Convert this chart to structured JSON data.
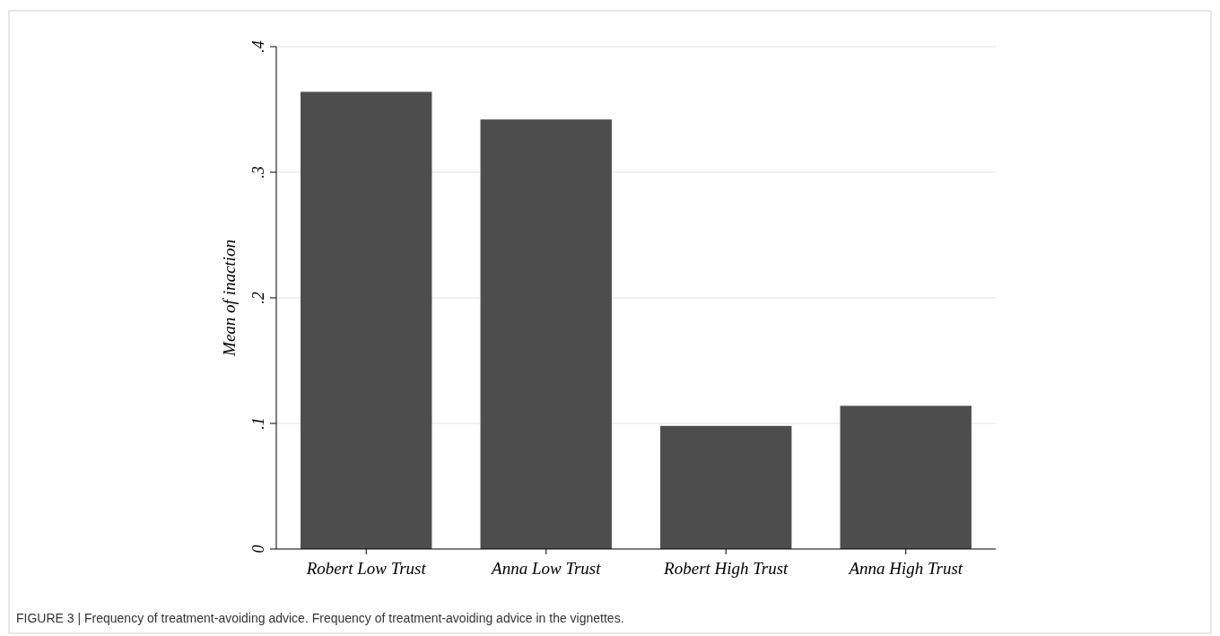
{
  "chart_data": {
    "type": "bar",
    "ylabel": "Mean of inaction",
    "categories": [
      "Robert Low Trust",
      "Anna Low Trust",
      "Robert High Trust",
      "Anna High Trust"
    ],
    "values": [
      0.364,
      0.342,
      0.098,
      0.114
    ],
    "color": "#4d4d4d",
    "ylim": [
      0,
      0.4
    ],
    "yticks": [
      {
        "value": 0,
        "label": "0"
      },
      {
        "value": 0.1,
        "label": ".1"
      },
      {
        "value": 0.2,
        "label": ".2"
      },
      {
        "value": 0.3,
        "label": ".3"
      },
      {
        "value": 0.4,
        "label": ".4"
      }
    ],
    "grid": "y",
    "annotations": [
      "FIGURE 3 | Frequency of treatment-avoiding advice. Frequency of treatment-avoiding advice in the vignettes."
    ]
  }
}
